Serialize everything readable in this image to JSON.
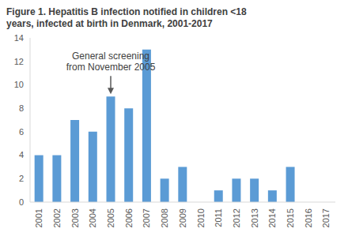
{
  "chart_data": {
    "type": "bar",
    "title": "Figure 1. Hepatitis B infection notified in children <18 years, infected at birth in Denmark, 2001-2017",
    "categories": [
      "2001",
      "2002",
      "2003",
      "2004",
      "2005",
      "2006",
      "2007",
      "2008",
      "2009",
      "2010",
      "2011",
      "2012",
      "2013",
      "2014",
      "2015",
      "2016",
      "2017"
    ],
    "values": [
      4,
      4,
      7,
      6,
      9,
      8,
      13,
      2,
      3,
      0,
      1,
      2,
      2,
      1,
      3,
      0,
      0
    ],
    "color": "#5b9bd5",
    "ylim": [
      0,
      14
    ],
    "yticks": [
      0,
      2,
      4,
      6,
      8,
      10,
      12,
      14
    ],
    "grid": false,
    "annotations": [
      {
        "text": "General screening from November 2005",
        "x": "2005"
      }
    ]
  }
}
